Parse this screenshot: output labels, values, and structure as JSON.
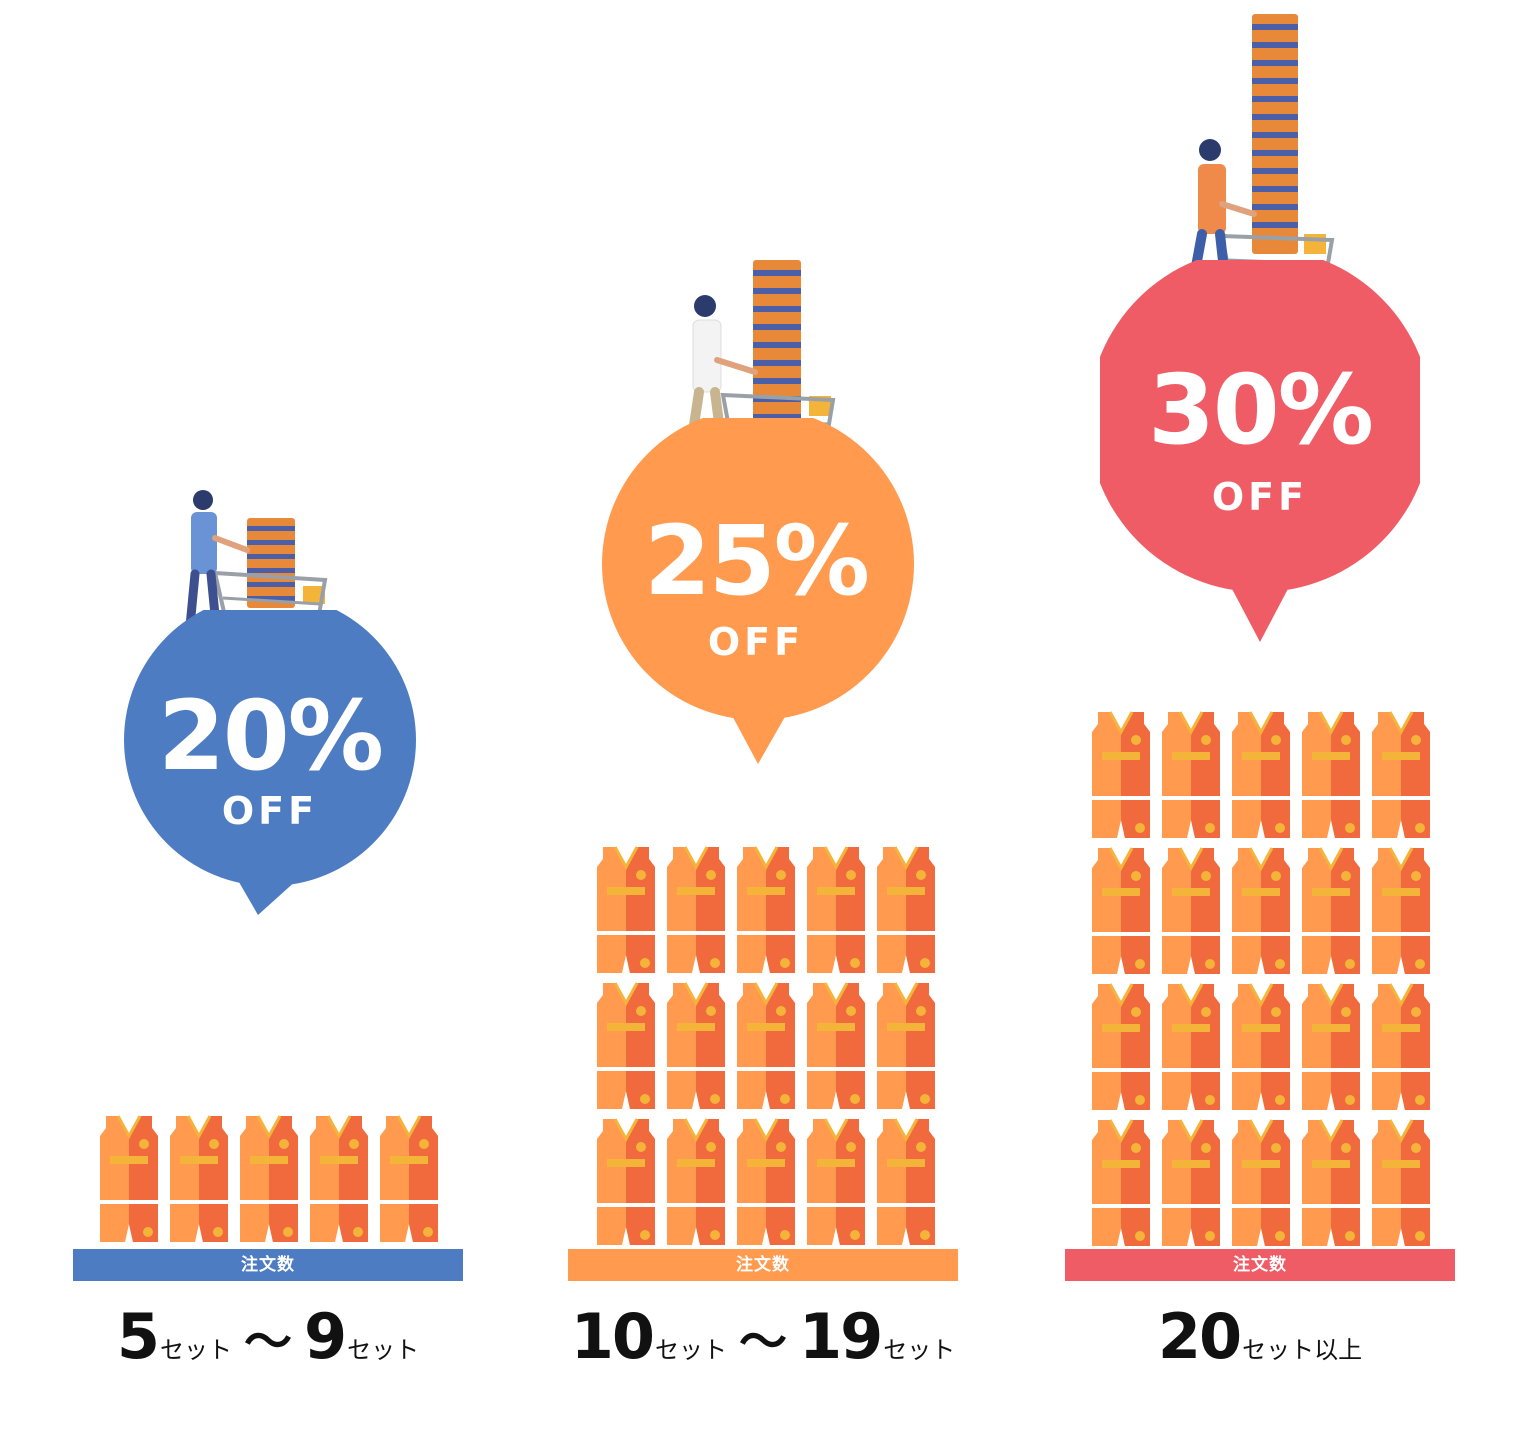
{
  "tiers": [
    {
      "discount": "20%",
      "off": "OFF",
      "color": "#4e7cc2",
      "bar_label": "注文数",
      "from_num": "5",
      "from_unit": "セット",
      "tilde": "〜",
      "to_num": "9",
      "to_unit": "セット",
      "quantity_icons": 5
    },
    {
      "discount": "25%",
      "off": "OFF",
      "color": "#ff9a4f",
      "bar_label": "注文数",
      "from_num": "10",
      "from_unit": "セット",
      "tilde": "〜",
      "to_num": "19",
      "to_unit": "セット",
      "quantity_icons": 15
    },
    {
      "discount": "30%",
      "off": "OFF",
      "color": "#ef5c66",
      "bar_label": "注文数",
      "from_num": "20",
      "from_unit": "セット以上",
      "quantity_icons": 20
    }
  ],
  "icons": {
    "jersey": "basketball-uniform-icon",
    "shopper": "shopper-with-cart-icon"
  }
}
